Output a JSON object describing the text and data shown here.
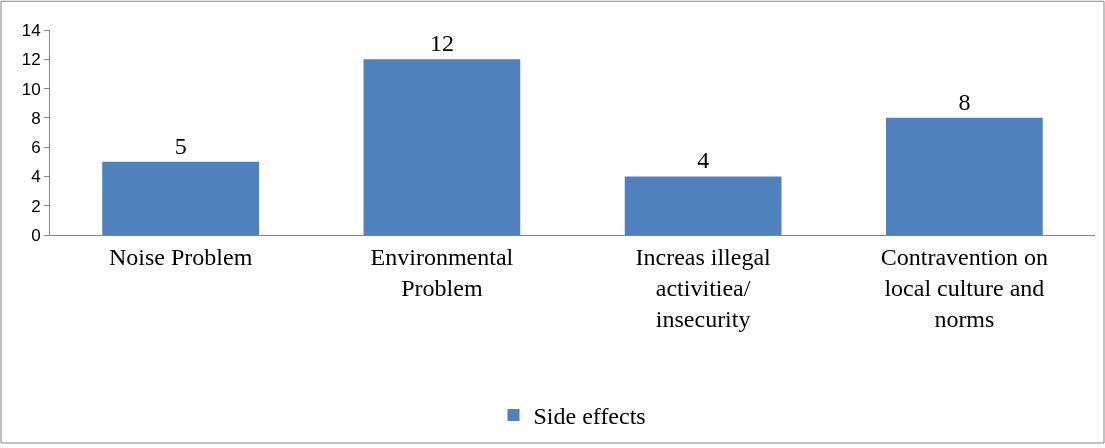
{
  "chart_data": {
    "type": "bar",
    "categories": [
      "Noise Problem",
      "Environmental Problem",
      "Increas illegal activitiea/ insecurity",
      "Contravention on local culture and norms"
    ],
    "series": [
      {
        "name": "Side effects",
        "color": "#4f81bd",
        "values": [
          5,
          12,
          4,
          8
        ]
      }
    ],
    "ylim": [
      0,
      14
    ],
    "yticks": [
      0,
      2,
      4,
      6,
      8,
      10,
      12,
      14
    ],
    "data_labels": true,
    "legend": "bottom"
  }
}
